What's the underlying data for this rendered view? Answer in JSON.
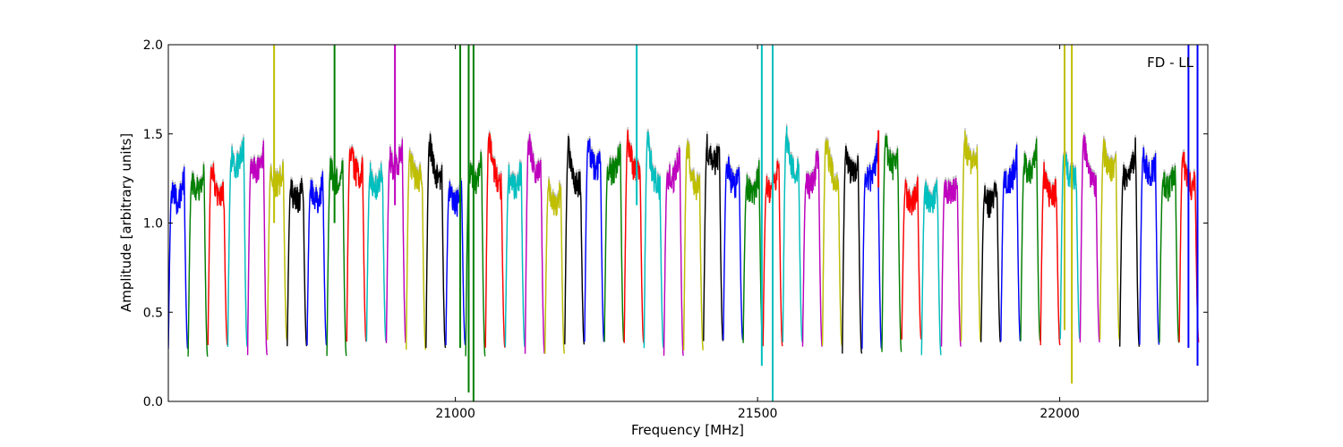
{
  "chart_data": {
    "type": "line",
    "title": "",
    "annotation": "FD - LL",
    "xlabel": "Frequency [MHz]",
    "ylabel": "Amplitude [arbitrary units]",
    "xlim": [
      20525,
      22245
    ],
    "ylim": [
      0.0,
      2.0
    ],
    "xticks": [
      21000,
      21500,
      22000
    ],
    "xtick_labels": [
      "21000",
      "21500",
      "22000"
    ],
    "yticks": [
      0.0,
      0.5,
      1.0,
      1.5,
      2.0
    ],
    "ytick_labels": [
      "0.0",
      "0.5",
      "1.0",
      "1.5",
      "2.0"
    ],
    "grid": false,
    "background_trace_color": "#bfbfbf",
    "series_colors": [
      "#0000ff",
      "#008000",
      "#ff0000",
      "#00bfbf",
      "#bf00bf",
      "#bfbf00",
      "#000000"
    ],
    "band_start": 20525,
    "band_width": 32.8,
    "band_count": 52,
    "spikes": [
      {
        "x": 20700,
        "color": "#bfbf00",
        "low": 1.0,
        "high": 2.0
      },
      {
        "x": 20800,
        "color": "#008000",
        "low": 1.0,
        "high": 2.0
      },
      {
        "x": 20900,
        "color": "#bf00bf",
        "low": 1.1,
        "high": 2.0
      },
      {
        "x": 21008,
        "color": "#008000",
        "low": 0.3,
        "high": 2.0
      },
      {
        "x": 21022,
        "color": "#008000",
        "low": 0.05,
        "high": 2.0
      },
      {
        "x": 21030,
        "color": "#008000",
        "low": 0.0,
        "high": 2.0
      },
      {
        "x": 21300,
        "color": "#00bfbf",
        "low": 1.1,
        "high": 2.0
      },
      {
        "x": 21507,
        "color": "#00bfbf",
        "low": 0.2,
        "high": 2.0
      },
      {
        "x": 21525,
        "color": "#00bfbf",
        "low": 0.0,
        "high": 2.0
      },
      {
        "x": 21700,
        "color": "#ff0000",
        "low": 1.2,
        "high": 1.52
      },
      {
        "x": 22008,
        "color": "#bfbf00",
        "low": 0.4,
        "high": 2.0
      },
      {
        "x": 22020,
        "color": "#bfbf00",
        "low": 0.1,
        "high": 2.0
      },
      {
        "x": 22213,
        "color": "#0000ff",
        "low": 0.3,
        "high": 2.0
      },
      {
        "x": 22228,
        "color": "#0000ff",
        "low": 0.2,
        "high": 2.0
      }
    ]
  }
}
